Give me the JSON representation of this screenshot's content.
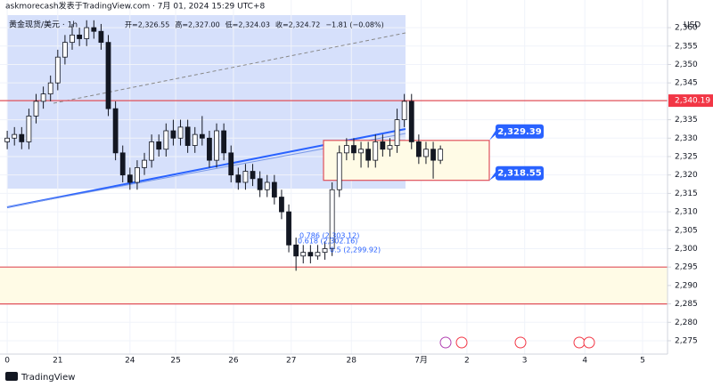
{
  "chart_data": {
    "type": "candlestick",
    "header": "askmorecash发表于TradingView.com · 7月 01, 2024 15:29 UTC+8",
    "symbol": "黄金现货/美元 · 1h",
    "ohlc_legend": [
      "开=2,326.55",
      "高=2,327.00",
      "低=2,324.03",
      "收=2,324.72",
      "−1.81 (−0.08%)"
    ],
    "currency": "USD",
    "brand": "TradingView",
    "x": [
      3,
      6,
      9,
      12,
      15,
      18,
      21,
      24,
      27,
      30,
      33,
      36,
      39,
      42,
      45,
      48,
      51,
      54,
      57,
      60,
      63,
      66,
      69,
      72,
      75,
      78,
      81,
      84,
      87,
      90,
      93,
      96,
      99,
      102,
      105,
      108,
      111,
      114,
      117,
      120,
      123,
      126,
      129,
      132,
      135,
      138,
      141,
      144,
      147,
      150,
      153,
      156,
      159,
      162,
      165,
      168,
      171,
      174,
      177,
      180,
      183
    ],
    "open": [
      2329,
      2330,
      2331,
      2329,
      2336,
      2340,
      2342,
      2345,
      2352,
      2356,
      2358,
      2357,
      2360,
      2359,
      2356,
      2338,
      2326,
      2320,
      2318,
      2322,
      2324,
      2329,
      2327,
      2332,
      2330,
      2333,
      2328,
      2331,
      2330,
      2324,
      2332,
      2326,
      2320,
      2318,
      2321,
      2319,
      2316,
      2318,
      2314,
      2310,
      2301,
      2298,
      2299,
      2298,
      2299,
      2300,
      2316,
      2326,
      2328,
      2326,
      2327,
      2324,
      2329,
      2327,
      2328,
      2335,
      2340,
      2329,
      2325,
      2327,
      2324
    ],
    "high": [
      2332,
      2333,
      2333,
      2338,
      2342,
      2344,
      2347,
      2354,
      2358,
      2361,
      2360,
      2362,
      2362,
      2361,
      2358,
      2340,
      2328,
      2322,
      2324,
      2326,
      2331,
      2331,
      2334,
      2335,
      2335,
      2335,
      2333,
      2336,
      2332,
      2334,
      2334,
      2328,
      2322,
      2323,
      2323,
      2321,
      2320,
      2320,
      2316,
      2312,
      2303,
      2301,
      2301,
      2301,
      2302,
      2318,
      2328,
      2330,
      2330,
      2329,
      2329,
      2331,
      2331,
      2330,
      2338,
      2342,
      2342,
      2331,
      2329,
      2329,
      2328
    ],
    "low": [
      2327,
      2328,
      2327,
      2327,
      2334,
      2338,
      2340,
      2343,
      2350,
      2354,
      2355,
      2355,
      2357,
      2354,
      2336,
      2324,
      2318,
      2316,
      2316,
      2320,
      2322,
      2325,
      2325,
      2328,
      2328,
      2326,
      2326,
      2328,
      2322,
      2322,
      2324,
      2318,
      2316,
      2316,
      2317,
      2314,
      2314,
      2312,
      2308,
      2299,
      2294,
      2296,
      2296,
      2297,
      2297,
      2298,
      2314,
      2324,
      2324,
      2322,
      2322,
      2322,
      2325,
      2325,
      2326,
      2333,
      2327,
      2323,
      2323,
      2319,
      2323
    ],
    "close": [
      2330,
      2331,
      2329,
      2336,
      2340,
      2342,
      2345,
      2352,
      2356,
      2358,
      2357,
      2360,
      2359,
      2356,
      2338,
      2326,
      2320,
      2318,
      2322,
      2324,
      2329,
      2327,
      2332,
      2330,
      2333,
      2328,
      2331,
      2330,
      2324,
      2332,
      2326,
      2320,
      2318,
      2321,
      2319,
      2316,
      2318,
      2314,
      2310,
      2301,
      2298,
      2299,
      2298,
      2299,
      2300,
      2316,
      2326,
      2328,
      2326,
      2327,
      2324,
      2329,
      2327,
      2328,
      2335,
      2340,
      2329,
      2325,
      2327,
      2324,
      2327
    ],
    "up_color": "#ffffff",
    "down_color": "#131722",
    "xlim": [
      0,
      277
    ],
    "xticks": [
      {
        "value": 3,
        "label": "0"
      },
      {
        "value": 24,
        "label": "21"
      },
      {
        "value": 54,
        "label": "24"
      },
      {
        "value": 73,
        "label": "25"
      },
      {
        "value": 97,
        "label": "26"
      },
      {
        "value": 121,
        "label": "27"
      },
      {
        "value": 146,
        "label": "28"
      },
      {
        "value": 175,
        "label": "7月"
      },
      {
        "value": 194,
        "label": "2"
      },
      {
        "value": 218,
        "label": "3"
      },
      {
        "value": 243,
        "label": "4"
      },
      {
        "value": 267,
        "label": "5"
      }
    ],
    "ylim": [
      2272.1,
      2363.4
    ],
    "yticks": [
      {
        "value": 2275,
        "label": "2,275"
      },
      {
        "value": 2280,
        "label": "2,280"
      },
      {
        "value": 2285,
        "label": "2,285"
      },
      {
        "value": 2290,
        "label": "2,290"
      },
      {
        "value": 2295,
        "label": "2,295"
      },
      {
        "value": 2300,
        "label": "2,300"
      },
      {
        "value": 2305,
        "label": "2,305"
      },
      {
        "value": 2310,
        "label": "2,310"
      },
      {
        "value": 2315,
        "label": "2,315"
      },
      {
        "value": 2320,
        "label": "2,320"
      },
      {
        "value": 2325,
        "label": "2,325"
      },
      {
        "value": 2330,
        "label": "2,330"
      },
      {
        "value": 2335,
        "label": "2,335"
      },
      {
        "value": 2345,
        "label": "2,345"
      },
      {
        "value": 2350,
        "label": "2,350"
      },
      {
        "value": 2355,
        "label": "2,355"
      },
      {
        "value": 2360,
        "label": "2,360"
      }
    ],
    "grid": true,
    "resistance": {
      "value": 2340.19,
      "label": "2,340.19"
    },
    "range_box": [
      {
        "value": 2329.39,
        "label": "2,329.39"
      },
      {
        "value": 2318.55,
        "label": "2,318.55"
      }
    ],
    "support_zone": [
      2295,
      2285
    ],
    "fib_labels": [
      "0.786 (2,303.12)",
      "0.618 (2,302.16)",
      "0.5 (2,299.92)"
    ]
  }
}
